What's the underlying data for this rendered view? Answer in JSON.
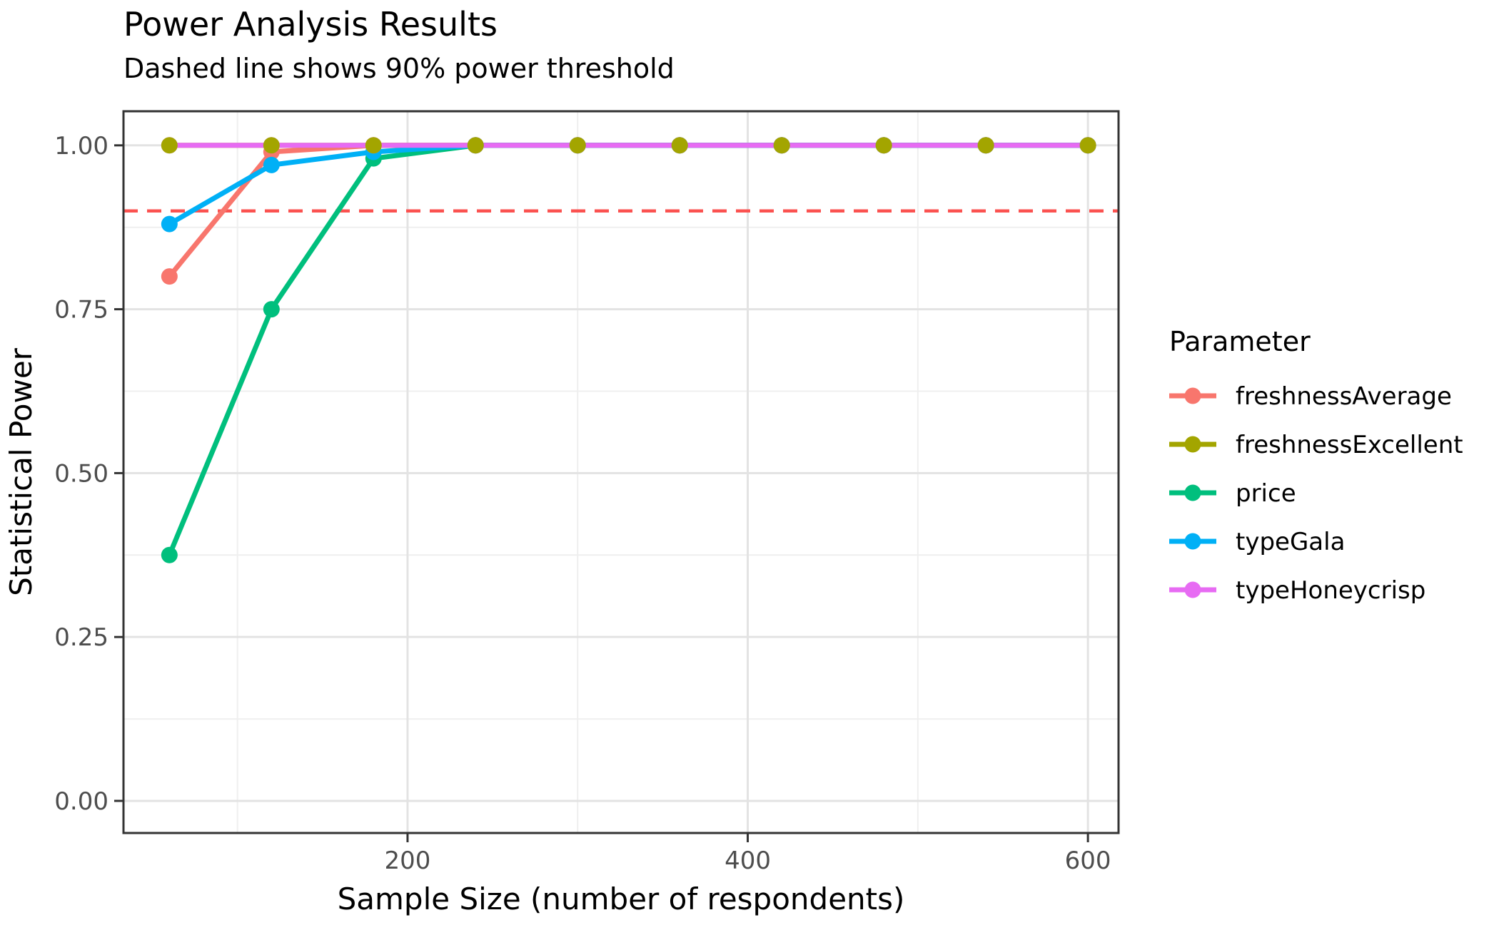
{
  "chart_data": {
    "type": "line",
    "title": "Power Analysis Results",
    "subtitle": "Dashed line shows 90% power threshold",
    "xlabel": "Sample Size (number of respondents)",
    "ylabel": "Statistical Power",
    "legend_title": "Parameter",
    "legend_position": "right",
    "grid": true,
    "marker": "circle",
    "x": [
      60,
      120,
      180,
      240,
      300,
      360,
      420,
      480,
      540,
      600
    ],
    "series": [
      {
        "name": "freshnessAverage",
        "color": "#F8766D",
        "values": [
          0.8,
          0.99,
          1.0,
          1.0,
          1.0,
          1.0,
          1.0,
          1.0,
          1.0,
          1.0
        ]
      },
      {
        "name": "freshnessExcellent",
        "color": "#A3A500",
        "values": [
          1.0,
          1.0,
          1.0,
          1.0,
          1.0,
          1.0,
          1.0,
          1.0,
          1.0,
          1.0
        ]
      },
      {
        "name": "price",
        "color": "#00BF7D",
        "values": [
          0.375,
          0.75,
          0.98,
          1.0,
          1.0,
          1.0,
          1.0,
          1.0,
          1.0,
          1.0
        ]
      },
      {
        "name": "typeGala",
        "color": "#00B0F6",
        "values": [
          0.88,
          0.97,
          0.99,
          1.0,
          1.0,
          1.0,
          1.0,
          1.0,
          1.0,
          1.0
        ]
      },
      {
        "name": "typeHoneycrisp",
        "color": "#E76BF3",
        "values": [
          1.0,
          1.0,
          1.0,
          1.0,
          1.0,
          1.0,
          1.0,
          1.0,
          1.0,
          1.0
        ]
      }
    ],
    "threshold_line": {
      "y": 0.9,
      "color": "#FB5250",
      "style": "dashed",
      "meaning": "90% power threshold"
    },
    "x_ticks": {
      "major": [
        200,
        400,
        600
      ],
      "major_labels": [
        "200",
        "400",
        "600"
      ],
      "minor": [
        100,
        300,
        500
      ]
    },
    "y_ticks": {
      "major": [
        0.0,
        0.25,
        0.5,
        0.75,
        1.0
      ],
      "major_labels": [
        "0.00",
        "0.25",
        "0.50",
        "0.75",
        "1.00"
      ],
      "minor": [
        0.125,
        0.375,
        0.625,
        0.875
      ]
    },
    "xlim": [
      33,
      618
    ],
    "ylim": [
      -0.049,
      1.052
    ],
    "style": {
      "panel_background": "#ffffff",
      "panel_border": "#333333",
      "gridline_major": "#e3e3e3",
      "gridline_minor": "#efefef",
      "tick_mark_color": "#333333",
      "tick_label_color": "#4d4d4d"
    }
  }
}
